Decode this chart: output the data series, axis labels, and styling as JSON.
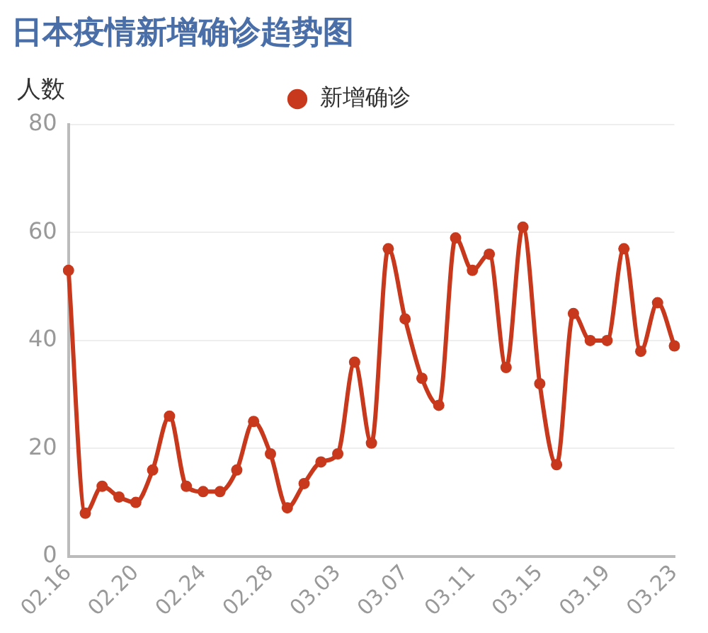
{
  "chart_data": {
    "type": "line",
    "title": "日本疫情新增确诊趋势图",
    "ylabel": "人数",
    "categories": [
      "02.16",
      null,
      null,
      null,
      "02.20",
      null,
      null,
      null,
      "02.24",
      null,
      null,
      null,
      "02.28",
      null,
      null,
      null,
      "03.03",
      null,
      null,
      null,
      "03.07",
      null,
      null,
      null,
      "03.11",
      null,
      null,
      null,
      "03.15",
      null,
      null,
      null,
      "03.19",
      null,
      null,
      null,
      "03.23"
    ],
    "series": [
      {
        "name": "新增确诊",
        "color": "#c8381c",
        "values": [
          53,
          8,
          13,
          11,
          10,
          16,
          26,
          13,
          12,
          12,
          16,
          25,
          19,
          9,
          13.5,
          17.5,
          19,
          36,
          21,
          57,
          44,
          33,
          28,
          59,
          53,
          56,
          35,
          61,
          32,
          17,
          45,
          40,
          40,
          57,
          38,
          47,
          39
        ]
      }
    ],
    "ylim": [
      0,
      80
    ],
    "yticks": [
      0,
      20,
      40,
      60,
      80
    ],
    "grid": "y",
    "legend": "top",
    "marker": "circle",
    "line_style": "solid"
  }
}
